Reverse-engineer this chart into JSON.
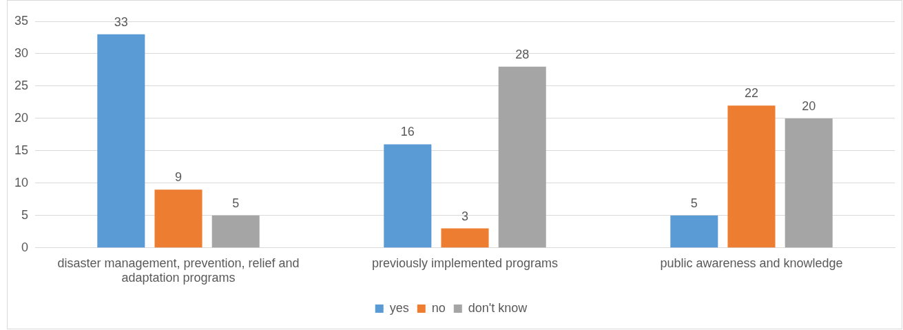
{
  "chart_data": {
    "type": "bar",
    "categories": [
      "disaster management, prevention, relief and adaptation programs",
      "previously implemented programs",
      "public awareness and knowledge"
    ],
    "series": [
      {
        "name": "yes",
        "color": "#5b9bd5",
        "values": [
          33,
          16,
          5
        ]
      },
      {
        "name": "no",
        "color": "#ed7d31",
        "values": [
          9,
          3,
          22
        ]
      },
      {
        "name": "don't know",
        "color": "#a5a5a5",
        "values": [
          5,
          28,
          20
        ]
      }
    ],
    "ylim": [
      0,
      35
    ],
    "yticks": [
      0,
      5,
      10,
      15,
      20,
      25,
      30,
      35
    ],
    "grid": "y",
    "legend": "bottom",
    "data_labels": true
  }
}
